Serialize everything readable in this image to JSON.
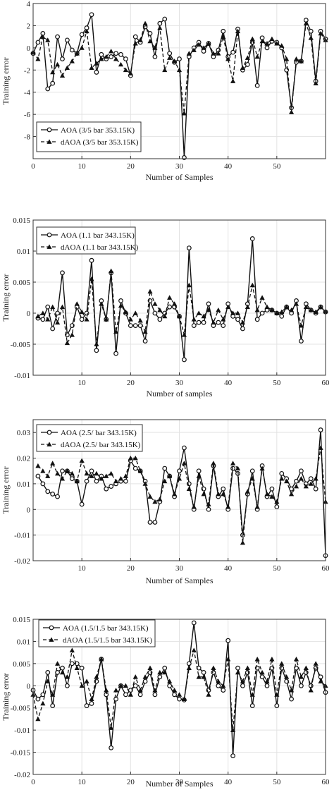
{
  "chart_data": [
    {
      "type": "line",
      "xlabel": "Number of Samples",
      "ylabel": "Training error",
      "xlim": [
        0,
        60
      ],
      "ylim": [
        -10,
        4
      ],
      "xticks": [
        0,
        10,
        20,
        30,
        40,
        50
      ],
      "yticks": [
        4,
        2,
        0,
        -2,
        -4,
        -6,
        -8
      ],
      "grid": true,
      "legend_position": "bottom-left",
      "x": [
        0,
        1,
        2,
        3,
        4,
        5,
        6,
        7,
        8,
        9,
        10,
        11,
        12,
        13,
        14,
        15,
        16,
        17,
        18,
        19,
        20,
        21,
        22,
        23,
        24,
        25,
        26,
        27,
        28,
        29,
        30,
        31,
        32,
        33,
        34,
        35,
        36,
        37,
        38,
        39,
        40,
        41,
        42,
        43,
        44,
        45,
        46,
        47,
        48,
        49,
        50,
        51,
        52,
        53,
        54,
        55,
        56,
        57,
        58,
        59,
        60
      ],
      "series": [
        {
          "name": "AOA (3/5 bar 353.15K)",
          "line": "solid",
          "marker": "circle",
          "values": [
            -0.5,
            0.5,
            1.3,
            -3.7,
            -3.2,
            1.0,
            -1.0,
            0.7,
            -0.2,
            -0.5,
            1.2,
            1.8,
            3.0,
            -2.2,
            -0.6,
            -1.0,
            -0.8,
            -0.5,
            -0.6,
            -1.0,
            -2.5,
            1.0,
            0.5,
            1.9,
            1.3,
            -0.8,
            2.2,
            2.6,
            -0.5,
            -1.3,
            -1.0,
            -9.9,
            -0.8,
            0.0,
            0.5,
            -0.3,
            0.4,
            -0.8,
            -0.2,
            1.5,
            -0.8,
            -0.4,
            1.7,
            -2.0,
            -1.5,
            0.5,
            -3.4,
            0.9,
            0.0,
            0.6,
            0.5,
            0.0,
            -2.0,
            -5.4,
            -1.3,
            -1.2,
            2.5,
            1.5,
            -3.0,
            1.5,
            0.8
          ]
        },
        {
          "name": "dAOA (3/5 bar 353.15K)",
          "line": "dashed",
          "marker": "triangle",
          "values": [
            -0.4,
            -1.0,
            1.0,
            0.7,
            -2.2,
            -1.5,
            -2.5,
            -1.8,
            -1.2,
            -0.5,
            0.0,
            1.5,
            -1.8,
            -1.4,
            -1.0,
            -0.8,
            -0.3,
            -1.0,
            -1.5,
            -2.0,
            -2.3,
            0.4,
            0.7,
            2.2,
            0.6,
            0.0,
            1.8,
            -2.0,
            -0.9,
            -1.2,
            -2.0,
            -5.9,
            -0.5,
            -0.2,
            0.3,
            0.0,
            0.4,
            -0.5,
            -0.5,
            1.0,
            -1.0,
            -3.0,
            1.5,
            -1.8,
            -0.9,
            0.8,
            -0.8,
            0.6,
            0.4,
            0.8,
            0.4,
            0.2,
            -1.0,
            -5.8,
            -1.0,
            -1.2,
            2.2,
            0.9,
            -3.2,
            1.3,
            0.7
          ]
        }
      ]
    },
    {
      "type": "line",
      "xlabel": "Number of samples",
      "ylabel": "Training error",
      "xlim": [
        0,
        60
      ],
      "ylim": [
        -0.01,
        0.015
      ],
      "xticks": [
        10,
        20,
        30,
        40,
        50,
        60
      ],
      "yticks": [
        0.015,
        0.01,
        0.005,
        0,
        -0.005,
        -0.01
      ],
      "ytick_labels": [
        "0.015",
        "0.01",
        "0.005",
        "0",
        "-0.005",
        "-0.01"
      ],
      "grid": true,
      "legend_position": "top-left",
      "x": [
        1,
        2,
        3,
        4,
        5,
        6,
        7,
        8,
        9,
        10,
        11,
        12,
        13,
        14,
        15,
        16,
        17,
        18,
        19,
        20,
        21,
        22,
        23,
        24,
        25,
        26,
        27,
        28,
        29,
        30,
        31,
        32,
        33,
        34,
        35,
        36,
        37,
        38,
        39,
        40,
        41,
        42,
        43,
        44,
        45,
        46,
        47,
        48,
        49,
        50,
        51,
        52,
        53,
        54,
        55,
        56,
        57,
        58,
        59,
        60
      ],
      "series": [
        {
          "name": "AOA (1.1 bar 343.15K)",
          "line": "solid",
          "marker": "circle",
          "values": [
            -0.0008,
            -0.001,
            0.001,
            -0.0025,
            0.0,
            0.0065,
            -0.0035,
            -0.002,
            0.001,
            -0.001,
            0.0,
            0.0085,
            -0.006,
            0.002,
            -0.001,
            0.0065,
            -0.0065,
            0.002,
            0.0,
            -0.002,
            -0.002,
            -0.002,
            -0.0045,
            0.002,
            0.0,
            -0.001,
            0.0,
            0.001,
            0.001,
            -0.0005,
            -0.0075,
            0.0105,
            -0.002,
            -0.0015,
            -0.0015,
            0.0015,
            -0.002,
            -0.0015,
            -0.002,
            0.0015,
            -0.0005,
            -0.001,
            -0.0025,
            0.0015,
            0.012,
            -0.001,
            0.0,
            0.0005,
            0.0005,
            0.0,
            -0.0005,
            0.001,
            0.0,
            0.002,
            -0.0045,
            0.0015,
            0.0005,
            0.0,
            0.001,
            0.0002
          ]
        },
        {
          "name": "dAOA (1.1 bar 343.15K)",
          "line": "dashed",
          "marker": "triangle",
          "values": [
            -0.0005,
            0.0,
            -0.001,
            0.001,
            -0.0015,
            0.001,
            -0.0048,
            -0.0035,
            0.0015,
            0.0002,
            -0.001,
            0.0055,
            -0.005,
            0.0015,
            -0.001,
            0.0068,
            -0.003,
            0.0012,
            0.0002,
            -0.001,
            0.0,
            -0.0012,
            -0.003,
            0.0035,
            0.0015,
            0.0005,
            -0.0005,
            0.0025,
            0.0015,
            -0.0005,
            -0.0035,
            0.0045,
            -0.001,
            0.0,
            -0.0005,
            0.0005,
            -0.0015,
            0.0005,
            -0.001,
            0.001,
            0.0,
            0.0,
            -0.0015,
            0.001,
            0.0045,
            0.0005,
            0.0025,
            0.001,
            0.0005,
            0.0,
            0.0002,
            0.001,
            0.0005,
            0.0015,
            -0.002,
            0.001,
            0.0005,
            0.0002,
            0.001,
            0.0003
          ]
        }
      ]
    },
    {
      "type": "line",
      "xlabel": "Number of Samples",
      "ylabel": "Training error",
      "xlim": [
        0,
        60
      ],
      "ylim": [
        -0.02,
        0.035
      ],
      "xticks": [
        10,
        20,
        30,
        40,
        50,
        60
      ],
      "yticks": [
        0.03,
        0.02,
        0.01,
        0,
        -0.01,
        -0.02
      ],
      "ytick_labels": [
        "0.03",
        "0.02",
        "0.01",
        "0",
        "-0.01",
        "-0.02"
      ],
      "grid": true,
      "legend_position": "top-left",
      "x": [
        1,
        2,
        3,
        4,
        5,
        6,
        7,
        8,
        9,
        10,
        11,
        12,
        13,
        14,
        15,
        16,
        17,
        18,
        19,
        20,
        21,
        22,
        23,
        24,
        25,
        26,
        27,
        28,
        29,
        30,
        31,
        32,
        33,
        34,
        35,
        36,
        37,
        38,
        39,
        40,
        41,
        42,
        43,
        44,
        45,
        46,
        47,
        48,
        49,
        50,
        51,
        52,
        53,
        54,
        55,
        56,
        57,
        58,
        59,
        60
      ],
      "series": [
        {
          "name": "AOA (2.5/ bar 343.15K)",
          "line": "solid",
          "marker": "circle",
          "values": [
            0.013,
            0.01,
            0.007,
            0.006,
            0.005,
            0.015,
            0.015,
            0.012,
            0.011,
            0.002,
            0.011,
            0.015,
            0.011,
            0.013,
            0.008,
            0.009,
            0.01,
            0.011,
            0.011,
            0.019,
            0.016,
            0.015,
            0.011,
            -0.005,
            -0.005,
            0.003,
            0.016,
            0.013,
            0.005,
            0.015,
            0.024,
            0.01,
            0.0,
            0.015,
            0.008,
            0.0,
            0.017,
            0.005,
            0.008,
            0.0,
            0.016,
            0.014,
            -0.01,
            0.006,
            0.015,
            0.0,
            0.017,
            0.005,
            0.008,
            0.001,
            0.014,
            0.012,
            0.008,
            0.011,
            0.015,
            0.01,
            0.012,
            0.008,
            0.031,
            -0.018
          ]
        },
        {
          "name": "dAOA (2.5/ bar 343.15K)",
          "line": "dashed",
          "marker": "triangle",
          "values": [
            0.017,
            0.015,
            0.013,
            0.018,
            0.014,
            0.012,
            0.015,
            0.014,
            0.011,
            0.019,
            0.014,
            0.013,
            0.014,
            0.012,
            0.013,
            0.014,
            0.011,
            0.012,
            0.013,
            0.02,
            0.02,
            0.015,
            0.01,
            0.005,
            0.003,
            0.004,
            0.011,
            0.013,
            0.006,
            0.012,
            0.018,
            0.008,
            0.001,
            0.013,
            0.006,
            0.002,
            0.018,
            0.006,
            0.006,
            0.001,
            0.018,
            0.016,
            -0.013,
            0.007,
            0.012,
            0.001,
            0.016,
            0.006,
            0.005,
            0.003,
            0.012,
            0.011,
            0.006,
            0.009,
            0.012,
            0.009,
            0.01,
            0.012,
            0.024,
            0.003
          ]
        }
      ]
    },
    {
      "type": "line",
      "xlabel": "Number of Samples",
      "ylabel": "Training error",
      "xlim": [
        0,
        60
      ],
      "ylim": [
        -0.02,
        0.015
      ],
      "xticks": [
        0,
        10,
        20,
        30,
        40,
        50,
        60
      ],
      "yticks": [
        0.015,
        0.01,
        0.005,
        0,
        -0.005,
        -0.01,
        -0.015,
        -0.02
      ],
      "ytick_labels": [
        "0.015",
        "0.01",
        "0.005",
        "0",
        "-0.005",
        "-0.01",
        "-0.015",
        "-0.02"
      ],
      "grid": true,
      "legend_position": "top-left",
      "x": [
        0,
        1,
        2,
        3,
        4,
        5,
        6,
        7,
        8,
        9,
        10,
        11,
        12,
        13,
        14,
        15,
        16,
        17,
        18,
        19,
        20,
        21,
        22,
        23,
        24,
        25,
        26,
        27,
        28,
        29,
        30,
        31,
        32,
        33,
        34,
        35,
        36,
        37,
        38,
        39,
        40,
        41,
        42,
        43,
        44,
        45,
        46,
        47,
        48,
        49,
        50,
        51,
        52,
        53,
        54,
        55,
        56,
        57,
        58,
        59,
        60
      ],
      "series": [
        {
          "name": "AOA (1.5/1.5 bar 343.15K)",
          "line": "solid",
          "marker": "circle",
          "values": [
            -0.001,
            -0.003,
            -0.002,
            0.003,
            -0.0045,
            0.003,
            0.004,
            0.0,
            0.005,
            0.005,
            0.004,
            -0.0045,
            -0.004,
            0.001,
            0.006,
            -0.002,
            -0.014,
            -0.003,
            0.0,
            -0.002,
            -0.001,
            0.0,
            -0.002,
            0.001,
            0.003,
            -0.002,
            0.002,
            0.004,
            0.0,
            -0.002,
            -0.003,
            -0.0032,
            0.005,
            0.0142,
            0.004,
            0.003,
            -0.001,
            0.003,
            0.0,
            -0.001,
            0.0102,
            -0.0158,
            0.004,
            0.0,
            0.003,
            -0.0045,
            0.004,
            0.002,
            0.0,
            0.004,
            -0.0045,
            0.004,
            0.001,
            -0.003,
            0.004,
            0.0,
            0.003,
            0.0,
            0.004,
            0.002,
            -0.0015
          ]
        },
        {
          "name": "dAOA (1.5/1.5 bar 343.15K)",
          "line": "dashed",
          "marker": "triangle",
          "values": [
            -0.002,
            -0.0075,
            -0.004,
            0.001,
            -0.002,
            0.005,
            0.003,
            0.002,
            0.008,
            0.004,
            0.0,
            0.001,
            -0.003,
            0.002,
            0.006,
            -0.001,
            -0.0095,
            -0.001,
            0.0,
            0.0,
            -0.002,
            0.002,
            -0.001,
            0.002,
            0.004,
            -0.001,
            0.003,
            0.003,
            0.001,
            -0.001,
            -0.002,
            -0.003,
            0.004,
            0.008,
            0.002,
            0.002,
            -0.002,
            0.004,
            0.001,
            0.0,
            0.006,
            -0.01,
            0.003,
            0.001,
            0.004,
            -0.002,
            0.006,
            0.003,
            0.001,
            0.006,
            -0.002,
            0.005,
            0.002,
            -0.001,
            0.006,
            0.002,
            0.004,
            -0.001,
            0.005,
            0.001,
            0.0
          ]
        }
      ]
    }
  ]
}
